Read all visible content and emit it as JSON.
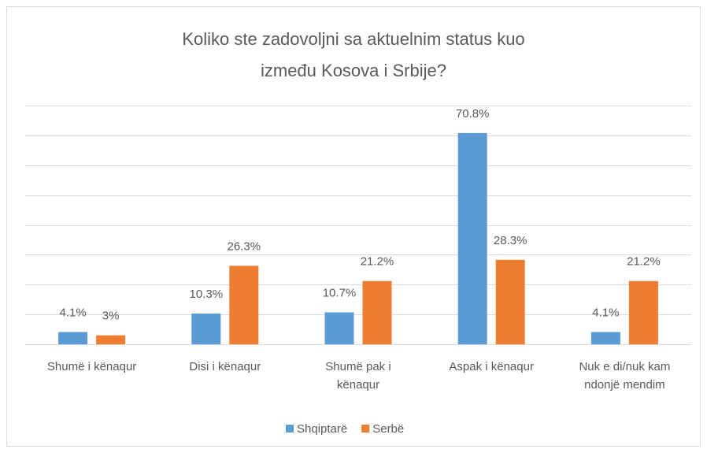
{
  "chart_data": {
    "type": "bar",
    "title": "Koliko ste zadovoljni sa aktuelnim status kuo između Kosova i Srbije?",
    "categories": [
      "Shumë i kënaqur",
      "Disi i kënaqur",
      "Shumë pak i kënaqur",
      "Aspak i kënaqur",
      "Nuk e di/nuk kam ndonjë mendim"
    ],
    "series": [
      {
        "name": "Shqiptarë",
        "color": "#5b9bd5",
        "values": [
          4.1,
          10.3,
          10.7,
          70.8,
          4.1
        ],
        "value_labels": [
          "4.1%",
          "10.3%",
          "10.7%",
          "70.8%",
          "4.1%"
        ]
      },
      {
        "name": "Serbë",
        "color": "#ed7d31",
        "values": [
          3,
          26.3,
          21.2,
          28.3,
          21.2
        ],
        "value_labels": [
          "3%",
          "26.3%",
          "21.2%",
          "28.3%",
          "21.2%"
        ]
      }
    ],
    "ylim": [
      0,
      80
    ],
    "yticks": [
      0,
      10,
      20,
      30,
      40,
      50,
      60,
      70,
      80
    ],
    "grid": true,
    "legend": "bottom"
  }
}
